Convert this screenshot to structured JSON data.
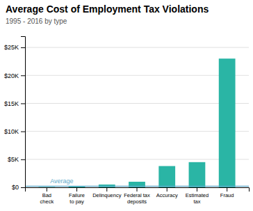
{
  "chart_data": {
    "type": "bar",
    "title": "Average Cost of Employment Tax Violations",
    "subtitle": "1995 - 2016 by type",
    "categories": [
      "Bad\ncheck",
      "Failure\nto pay",
      "Delinquency",
      "Federal tax\ndeposits",
      "Accuracy",
      "Estimated\ntax",
      "Fraud"
    ],
    "values": [
      50,
      120,
      500,
      1000,
      3800,
      4500,
      23000
    ],
    "color": "#2ab5a5",
    "average_line": {
      "value": 200,
      "label": "Average",
      "color": "#5ba8c9"
    },
    "ylim": [
      0,
      27000
    ],
    "yticks": [
      {
        "value": 0,
        "label": "$0"
      },
      {
        "value": 5000,
        "label": "$5K"
      },
      {
        "value": 10000,
        "label": "$10K"
      },
      {
        "value": 15000,
        "label": "$15K"
      },
      {
        "value": 20000,
        "label": "$20K"
      },
      {
        "value": 25000,
        "label": "$25K"
      }
    ],
    "grid": true
  }
}
